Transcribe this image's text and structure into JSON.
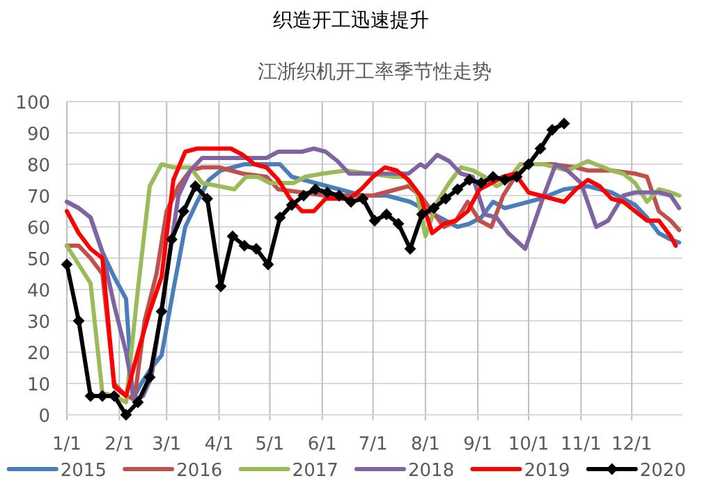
{
  "chart_data": {
    "type": "line",
    "title": "织造开工迅速提升",
    "subtitle": "江浙织机开工率季节性走势",
    "xlim": [
      "--01-01",
      "--12-31"
    ],
    "xticks": [
      {
        "value": "--01-01",
        "label": "1/1"
      },
      {
        "value": "--02-01",
        "label": "2/1"
      },
      {
        "value": "--03-01",
        "label": "3/1"
      },
      {
        "value": "--04-01",
        "label": "4/1"
      },
      {
        "value": "--05-01",
        "label": "5/1"
      },
      {
        "value": "--06-01",
        "label": "6/1"
      },
      {
        "value": "--07-01",
        "label": "7/1"
      },
      {
        "value": "--08-01",
        "label": "8/1"
      },
      {
        "value": "--09-01",
        "label": "9/1"
      },
      {
        "value": "--10-01",
        "label": "10/1"
      },
      {
        "value": "--11-01",
        "label": "11/1"
      },
      {
        "value": "--12-01",
        "label": "12/1"
      }
    ],
    "ylim": [
      0,
      100
    ],
    "yticks": [
      0,
      10,
      20,
      30,
      40,
      50,
      60,
      70,
      80,
      90,
      100
    ],
    "grid": true,
    "legend": "bottom",
    "series": [
      {
        "name": "2015",
        "color": "#4a7ebb",
        "x": [
          "--01-01",
          "--01-08",
          "--01-15",
          "--01-22",
          "--01-29",
          "--02-05",
          "--02-09",
          "--02-14",
          "--02-20",
          "--02-26",
          "--03-05",
          "--03-12",
          "--03-19",
          "--03-26",
          "--04-02",
          "--04-16",
          "--04-30",
          "--05-07",
          "--05-14",
          "--05-28",
          "--06-11",
          "--06-25",
          "--07-09",
          "--07-23",
          "--08-06",
          "--08-13",
          "--08-20",
          "--08-27",
          "--09-03",
          "--09-10",
          "--09-17",
          "--09-24",
          "--10-08",
          "--10-22",
          "--11-05",
          "--11-19",
          "--12-03",
          "--12-10",
          "--12-17",
          "--12-24",
          "--12-29"
        ],
        "values": [
          68,
          66,
          63,
          52,
          44,
          37,
          5,
          10,
          15,
          19,
          40,
          60,
          68,
          75,
          78,
          80,
          80,
          80,
          76,
          74,
          72,
          70,
          70,
          68,
          64,
          62,
          60,
          61,
          63,
          68,
          66,
          67,
          69,
          72,
          73,
          71,
          67,
          63,
          58,
          56,
          55
        ]
      },
      {
        "name": "2016",
        "color": "#c0504d",
        "x": [
          "--01-01",
          "--01-08",
          "--01-15",
          "--01-22",
          "--01-29",
          "--02-05",
          "--02-10",
          "--02-16",
          "--02-23",
          "--03-01",
          "--03-08",
          "--03-15",
          "--03-22",
          "--04-01",
          "--04-15",
          "--04-29",
          "--05-06",
          "--05-20",
          "--06-03",
          "--06-17",
          "--07-01",
          "--07-08",
          "--07-15",
          "--07-22",
          "--07-29",
          "--08-05",
          "--08-12",
          "--08-19",
          "--08-26",
          "--09-02",
          "--09-09",
          "--09-16",
          "--09-23",
          "--10-01",
          "--10-15",
          "--10-29",
          "--11-05",
          "--11-19",
          "--12-03",
          "--12-10",
          "--12-17",
          "--12-24",
          "--12-29"
        ],
        "values": [
          54,
          54,
          50,
          45,
          10,
          6,
          5,
          30,
          45,
          65,
          73,
          78,
          79,
          79,
          77,
          76,
          72,
          71,
          70,
          70,
          70,
          71,
          72,
          73,
          70,
          65,
          60,
          62,
          68,
          62,
          60,
          70,
          76,
          80,
          80,
          79,
          78,
          78,
          77,
          76,
          65,
          62,
          59
        ]
      },
      {
        "name": "2017",
        "color": "#9bbb59",
        "x": [
          "--01-01",
          "--01-08",
          "--01-15",
          "--01-22",
          "--01-29",
          "--02-05",
          "--02-12",
          "--02-19",
          "--02-26",
          "--03-05",
          "--03-15",
          "--03-22",
          "--04-01",
          "--04-10",
          "--04-17",
          "--04-24",
          "--05-01",
          "--05-15",
          "--05-22",
          "--06-01",
          "--06-15",
          "--06-29",
          "--07-13",
          "--07-20",
          "--07-27",
          "--08-01",
          "--08-08",
          "--08-15",
          "--08-22",
          "--08-29",
          "--09-05",
          "--09-12",
          "--09-19",
          "--09-26",
          "--10-10",
          "--10-24",
          "--11-05",
          "--11-19",
          "--11-26",
          "--12-03",
          "--12-10",
          "--12-17",
          "--12-24",
          "--12-29"
        ],
        "values": [
          54,
          48,
          42,
          7,
          6,
          4,
          40,
          73,
          80,
          79,
          79,
          74,
          73,
          72,
          76,
          76,
          74,
          74,
          76,
          77,
          78,
          77,
          76,
          76,
          71,
          57,
          68,
          74,
          79,
          78,
          76,
          73,
          75,
          80,
          80,
          78,
          81,
          78,
          77,
          74,
          68,
          72,
          71,
          70
        ]
      },
      {
        "name": "2018",
        "color": "#8064a2",
        "x": [
          "--01-01",
          "--01-08",
          "--01-15",
          "--01-22",
          "--01-29",
          "--02-05",
          "--02-10",
          "--02-15",
          "--02-20",
          "--03-01",
          "--03-08",
          "--03-15",
          "--03-22",
          "--04-01",
          "--04-15",
          "--04-29",
          "--05-06",
          "--05-20",
          "--05-27",
          "--06-03",
          "--06-10",
          "--06-17",
          "--06-24",
          "--07-01",
          "--07-15",
          "--07-22",
          "--07-29",
          "--08-01",
          "--08-08",
          "--08-15",
          "--08-22",
          "--08-29",
          "--09-05",
          "--09-12",
          "--09-19",
          "--09-29",
          "--10-10",
          "--10-17",
          "--10-24",
          "--11-01",
          "--11-10",
          "--11-17",
          "--11-26",
          "--12-03",
          "--12-17",
          "--12-24",
          "--12-29"
        ],
        "values": [
          68,
          66,
          63,
          52,
          35,
          20,
          5,
          6,
          12,
          45,
          70,
          78,
          82,
          82,
          82,
          82,
          84,
          84,
          85,
          84,
          81,
          77,
          77,
          77,
          77,
          77,
          80,
          79,
          83,
          81,
          77,
          76,
          64,
          63,
          58,
          53,
          70,
          80,
          78,
          74,
          60,
          62,
          70,
          71,
          71,
          70,
          66
        ]
      },
      {
        "name": "2019",
        "color": "#ff0000",
        "x": [
          "--01-01",
          "--01-08",
          "--01-15",
          "--01-22",
          "--01-29",
          "--02-05",
          "--02-12",
          "--02-19",
          "--02-26",
          "--03-05",
          "--03-12",
          "--03-19",
          "--04-01",
          "--04-08",
          "--04-15",
          "--04-22",
          "--04-29",
          "--05-06",
          "--05-13",
          "--05-20",
          "--05-27",
          "--06-03",
          "--06-10",
          "--06-17",
          "--06-24",
          "--07-01",
          "--07-08",
          "--07-15",
          "--07-22",
          "--07-29",
          "--08-05",
          "--08-12",
          "--08-19",
          "--08-26",
          "--09-02",
          "--09-09",
          "--09-16",
          "--09-23",
          "--10-01",
          "--10-08",
          "--10-15",
          "--10-22",
          "--10-29",
          "--11-05",
          "--11-12",
          "--11-19",
          "--11-26",
          "--12-03",
          "--12-10",
          "--12-17",
          "--12-24",
          "--12-27"
        ],
        "values": [
          65,
          58,
          53,
          50,
          9,
          6,
          20,
          33,
          44,
          75,
          84,
          85,
          85,
          85,
          83,
          80,
          79,
          75,
          69,
          65,
          65,
          69,
          69,
          69,
          72,
          76,
          79,
          78,
          75,
          70,
          58,
          61,
          62,
          65,
          72,
          74,
          76,
          77,
          71,
          70,
          69,
          68,
          72,
          75,
          73,
          69,
          68,
          65,
          62,
          62,
          57,
          54
        ]
      },
      {
        "name": "2020",
        "color": "#000000",
        "marker": "diamond",
        "x": [
          "--01-01",
          "--01-08",
          "--01-15",
          "--01-22",
          "--01-29",
          "--02-05",
          "--02-12",
          "--02-19",
          "--02-26",
          "--03-04",
          "--03-11",
          "--03-18",
          "--03-25",
          "--04-02",
          "--04-09",
          "--04-16",
          "--04-23",
          "--04-30",
          "--05-07",
          "--05-14",
          "--05-21",
          "--05-28",
          "--06-04",
          "--06-11",
          "--06-18",
          "--06-25",
          "--07-02",
          "--07-09",
          "--07-16",
          "--07-23",
          "--07-30",
          "--08-06",
          "--08-13",
          "--08-20",
          "--08-27",
          "--09-03",
          "--09-10",
          "--09-17",
          "--09-24",
          "--10-01",
          "--10-08",
          "--10-15",
          "--10-22"
        ],
        "values": [
          48,
          30,
          6,
          6,
          6,
          0,
          4,
          12,
          33,
          56,
          65,
          73,
          69,
          41,
          57,
          54,
          53,
          48,
          63,
          67,
          70,
          72,
          71,
          70,
          68,
          69,
          62,
          64,
          61,
          53,
          64,
          66,
          69,
          72,
          75,
          74,
          76,
          75,
          76,
          80,
          85,
          91,
          93
        ]
      }
    ]
  }
}
